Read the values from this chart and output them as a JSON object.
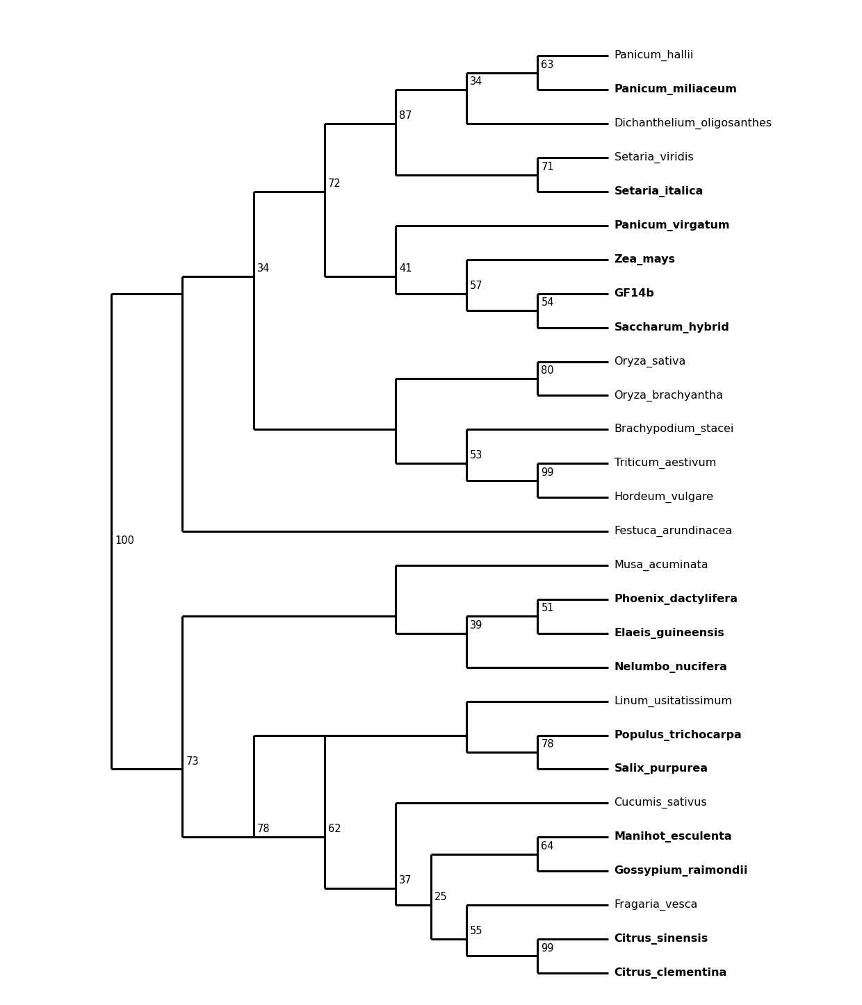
{
  "taxa": [
    "Panicum_hallii",
    "Panicum_miliaceum",
    "Dichanthelium_oligosanthes",
    "Setaria_viridis",
    "Setaria_italica",
    "Panicum_virgatum",
    "Zea_mays",
    "GF14b",
    "Saccharum_hybrid",
    "Oryza_sativa",
    "Oryza_brachyantha",
    "Brachypodium_stacei",
    "Triticum_aestivum",
    "Hordeum_vulgare",
    "Festuca_arundinacea",
    "Musa_acuminata",
    "Phoenix_dactylifera",
    "Elaeis_guineensis",
    "Nelumbo_nucifera",
    "Linum_usitatissimum",
    "Populus_trichocarpa",
    "Salix_purpurea",
    "Cucumis_sativus",
    "Manihot_esculenta",
    "Gossypium_raimondii",
    "Fragaria_vesca",
    "Citrus_sinensis",
    "Citrus_clementina"
  ],
  "bold_taxa": [
    "Panicum_miliaceum",
    "Setaria_italica",
    "Panicum_virgatum",
    "Zea_mays",
    "GF14b",
    "Saccharum_hybrid",
    "Phoenix_dactylifera",
    "Elaeis_guineensis",
    "Nelumbo_nucifera",
    "Populus_trichocarpa",
    "Salix_purpurea",
    "Manihot_esculenta",
    "Gossypium_raimondii",
    "Citrus_sinensis",
    "Citrus_clementina"
  ],
  "background_color": "#ffffff",
  "line_color": "#000000",
  "label_fontsize": 11.5,
  "bootstrap_fontsize": 10.5,
  "lw": 2.2
}
